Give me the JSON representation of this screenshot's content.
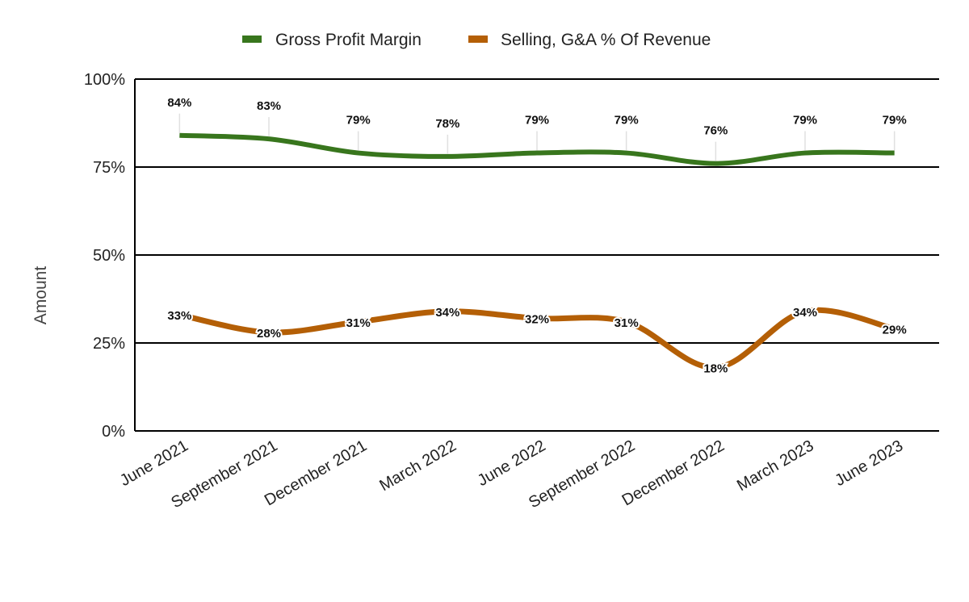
{
  "chart_data": {
    "type": "line",
    "title": "",
    "xlabel": "",
    "ylabel": "Amount",
    "ylim": [
      0,
      100
    ],
    "y_ticks": [
      "0%",
      "25%",
      "50%",
      "75%",
      "100%"
    ],
    "y_tick_values": [
      0,
      25,
      50,
      75,
      100
    ],
    "grid": true,
    "legend_position": "top",
    "smooth": true,
    "categories": [
      "June 2021",
      "September 2021",
      "December 2021",
      "March 2022",
      "June 2022",
      "September 2022",
      "December 2022",
      "March 2023",
      "June 2023"
    ],
    "series": [
      {
        "name": "Gross Profit Margin",
        "color": "#38761d",
        "values": [
          84,
          83,
          79,
          78,
          79,
          79,
          76,
          79,
          79
        ],
        "labels": [
          "84%",
          "83%",
          "79%",
          "78%",
          "79%",
          "79%",
          "76%",
          "79%",
          "79%"
        ]
      },
      {
        "name": "Selling, G&A % Of Revenue",
        "color": "#b45f06",
        "values": [
          33,
          28,
          31,
          34,
          32,
          31,
          18,
          34,
          29
        ],
        "labels": [
          "33%",
          "28%",
          "31%",
          "34%",
          "32%",
          "31%",
          "18%",
          "34%",
          "29%"
        ]
      }
    ]
  }
}
